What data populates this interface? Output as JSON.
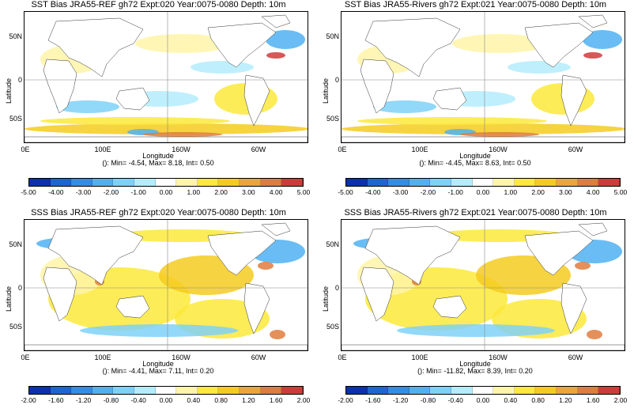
{
  "colorbar_colors": [
    "#0c2fb4",
    "#1f64d6",
    "#2f8ee8",
    "#4fb1f2",
    "#7fd1f7",
    "#b4ecfb",
    "#ffffff",
    "#fff5a8",
    "#fbe93b",
    "#f5cb1f",
    "#eea43a",
    "#e07c3d",
    "#cf3b3b"
  ],
  "shared": {
    "ylabel": "Latitude",
    "xlabel": "Longitude",
    "yticks": [
      "50N",
      "0",
      "50S"
    ],
    "xticks": [
      "0E",
      "100E",
      "160W",
      "60W"
    ]
  },
  "panels": [
    {
      "kind": "sst",
      "title": "SST Bias JRA55-REF gh72 Expt:020 Year:0075-0080 Depth:  10m",
      "stats": "(): Min= -4.54, Max= 8.18, Int= 0.50",
      "ticks": [
        "-5.00",
        "-4.00",
        "-3.00",
        "-2.00",
        "-1.00",
        "0.00",
        "1.00",
        "2.00",
        "3.00",
        "4.00",
        "5.00"
      ]
    },
    {
      "kind": "sst",
      "title": "SST Bias JRA55-Rivers gh72 Expt:021 Year:0075-0080 Depth:  10m",
      "stats": "(): Min= -4.45, Max= 8.63, Int= 0.50",
      "ticks": [
        "-5.00",
        "-4.00",
        "-3.00",
        "-2.00",
        "-1.00",
        "0.00",
        "1.00",
        "2.00",
        "3.00",
        "4.00",
        "5.00"
      ]
    },
    {
      "kind": "sss",
      "title": "SSS Bias JRA55-REF gh72 Expt:020 Year:0075-0080 Depth:  10m",
      "stats": "(): Min= -4.41, Max= 7.11, Int= 0.20",
      "ticks": [
        "-2.00",
        "-1.60",
        "-1.20",
        "-0.80",
        "-0.40",
        "0.00",
        "0.40",
        "0.80",
        "1.20",
        "1.60",
        "2.00"
      ]
    },
    {
      "kind": "sss",
      "title": "SSS Bias JRA55-Rivers gh72 Expt:021 Year:0075-0080 Depth:  10m",
      "stats": "(): Min= -11.82, Max= 8.39, Int= 0.20",
      "ticks": [
        "-2.00",
        "-1.60",
        "-1.20",
        "-0.80",
        "-0.40",
        "0.00",
        "0.40",
        "0.80",
        "1.20",
        "1.60",
        "2.00"
      ]
    }
  ]
}
